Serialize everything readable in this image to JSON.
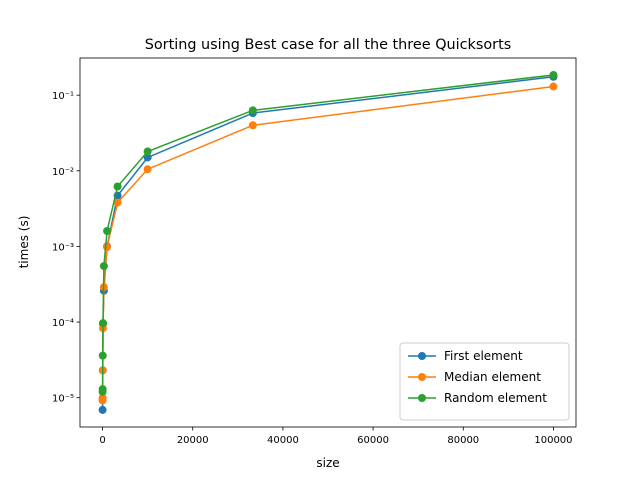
{
  "chart_data": {
    "type": "line",
    "title": "Sorting using Best case for all the three Quicksorts",
    "x_label": "size",
    "y_label": "times (s)",
    "x": [
      10,
      20,
      50,
      100,
      300,
      1000,
      3333,
      10000,
      33333,
      100000
    ],
    "series": [
      {
        "name": "First element",
        "color": "#1f77b4",
        "values": [
          6.9e-06,
          9.4e-06,
          2.3e-05,
          9.5e-05,
          0.00026,
          0.001,
          0.0047,
          0.015,
          0.058,
          0.175
        ]
      },
      {
        "name": "Median element",
        "color": "#ff7f0e",
        "values": [
          9.2e-06,
          1e-05,
          2.3e-05,
          8.3e-05,
          0.00029,
          0.00098,
          0.0038,
          0.0105,
          0.04,
          0.13
        ]
      },
      {
        "name": "Random element",
        "color": "#2ca02c",
        "values": [
          1.2e-05,
          1.3e-05,
          3.6e-05,
          9.7e-05,
          0.00055,
          0.0016,
          0.0062,
          0.018,
          0.063,
          0.185
        ]
      }
    ],
    "xlim": [
      -5000,
      105000
    ],
    "ylim": [
      4.1e-06,
      0.31
    ],
    "log_y": true,
    "xticks": [
      0,
      20000,
      40000,
      60000,
      80000,
      100000
    ],
    "yticks": [
      {
        "value": 1e-05,
        "label": "10⁻⁵"
      },
      {
        "value": 0.0001,
        "label": "10⁻⁴"
      },
      {
        "value": 0.001,
        "label": "10⁻³"
      },
      {
        "value": 0.01,
        "label": "10⁻²"
      },
      {
        "value": 0.1,
        "label": "10⁻¹"
      }
    ],
    "legend": "lower right"
  }
}
